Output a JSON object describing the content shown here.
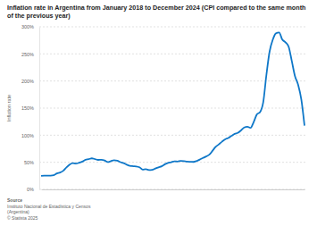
{
  "chart_data": {
    "type": "line",
    "title": "Inflation rate in Argentina from January 2018 to December 2024 (CPI compared to the same month of the previous year)",
    "y_label": "Inflation rate",
    "source_label": "Source",
    "source": [
      "Instituto Nacional de Estadística y Censos",
      "(Argentina)"
    ],
    "copyright": "© Statista 2025",
    "categories": [
      null,
      null,
      null,
      null,
      null,
      null,
      null,
      null,
      null,
      null,
      null,
      null,
      null,
      null,
      null,
      null,
      null,
      null,
      null,
      null,
      null,
      null,
      null,
      null,
      null,
      null,
      null,
      null,
      null,
      null,
      null,
      null,
      null,
      null,
      null,
      null,
      null,
      null,
      null,
      null,
      null,
      null,
      null,
      null,
      null,
      null,
      null,
      null,
      null,
      null,
      null,
      null,
      null,
      null,
      null,
      null,
      null,
      null,
      null,
      null,
      null,
      null,
      null,
      null,
      null,
      null,
      null,
      null,
      null,
      null,
      null,
      null,
      null,
      null,
      null,
      null,
      null,
      null,
      null,
      null,
      null,
      null,
      null,
      null
    ],
    "values": [
      25.0,
      25.4,
      25.4,
      25.5,
      26.3,
      29.5,
      31.2,
      34.4,
      40.5,
      45.9,
      48.5,
      47.6,
      49.3,
      51.3,
      54.7,
      55.8,
      57.3,
      55.8,
      54.4,
      54.5,
      53.5,
      50.5,
      52.1,
      53.8,
      52.9,
      50.3,
      48.4,
      45.6,
      43.4,
      42.8,
      42.4,
      40.7,
      36.6,
      37.2,
      35.8,
      36.1,
      38.5,
      40.7,
      42.6,
      46.3,
      48.8,
      50.2,
      51.8,
      51.4,
      52.5,
      52.1,
      51.2,
      50.9,
      50.7,
      52.3,
      55.1,
      58.0,
      60.7,
      64.0,
      71.0,
      78.5,
      83.0,
      88.0,
      92.4,
      94.8,
      98.8,
      102.5,
      104.3,
      108.8,
      114.2,
      115.6,
      113.4,
      124.4,
      138.3,
      142.7,
      160.9,
      211.4,
      254.2,
      276.2,
      287.9,
      289.4,
      276.4,
      271.5,
      263.4,
      236.7,
      209.0,
      193.0,
      166.0,
      117.8
    ],
    "color": "#0e77c8",
    "ylim": [
      0,
      300
    ],
    "yticks": [
      {
        "value": 0,
        "label": "0%"
      },
      {
        "value": 50,
        "label": "50%"
      },
      {
        "value": 100,
        "label": "100%"
      },
      {
        "value": 150,
        "label": "150%"
      },
      {
        "value": 200,
        "label": "200%"
      },
      {
        "value": 250,
        "label": "250%"
      },
      {
        "value": 300,
        "label": "300%"
      }
    ],
    "grid": true,
    "tick_labels": "y"
  }
}
